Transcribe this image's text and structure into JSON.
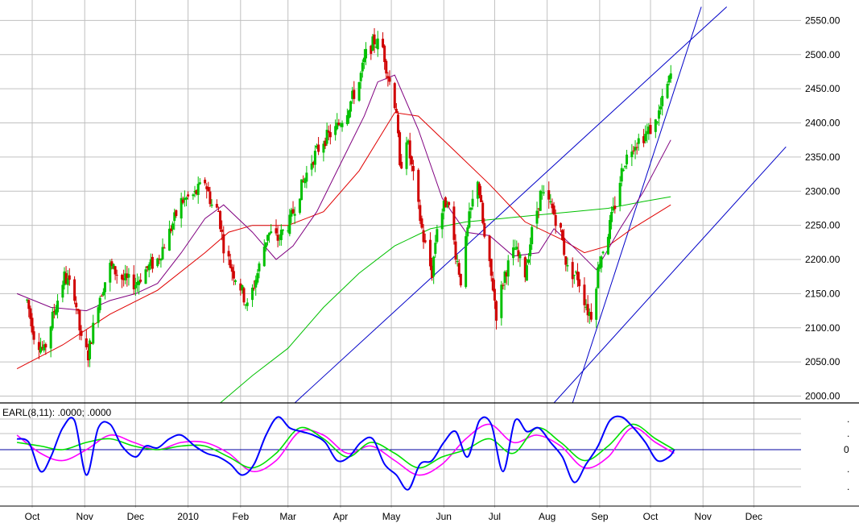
{
  "chart_data": {
    "type": "candlestick",
    "indicator_label": "EARL(8,11): .0000; .0000",
    "indicator_ticks": [
      ".",
      ".",
      "0",
      ".",
      "."
    ],
    "y_axis": {
      "ticks": [
        "2000.00",
        "2050.00",
        "2100.00",
        "2150.00",
        "2200.00",
        "2250.00",
        "2300.00",
        "2350.00",
        "2400.00",
        "2450.00",
        "2500.00",
        "2550.00"
      ],
      "ylim": [
        1990,
        2580
      ]
    },
    "x_axis": {
      "labels": [
        "Oct",
        "Nov",
        "Dec",
        "2010",
        "Feb",
        "Mar",
        "Apr",
        "May",
        "Jun",
        "Jul",
        "Aug",
        "Sep",
        "Oct",
        "Nov",
        "Dec"
      ]
    },
    "price_path": [
      [
        "2009-09-28",
        2140
      ],
      [
        "2009-10-02",
        2090
      ],
      [
        "2009-10-08",
        2065
      ],
      [
        "2009-10-14",
        2125
      ],
      [
        "2009-10-20",
        2175
      ],
      [
        "2009-10-26",
        2150
      ],
      [
        "2009-10-30",
        2080
      ],
      [
        "2009-11-03",
        2060
      ],
      [
        "2009-11-09",
        2140
      ],
      [
        "2009-11-16",
        2190
      ],
      [
        "2009-11-24",
        2170
      ],
      [
        "2009-12-01",
        2165
      ],
      [
        "2009-12-07",
        2185
      ],
      [
        "2009-12-14",
        2200
      ],
      [
        "2009-12-21",
        2240
      ],
      [
        "2009-12-28",
        2285
      ],
      [
        "2010-01-05",
        2295
      ],
      [
        "2010-01-11",
        2315
      ],
      [
        "2010-01-15",
        2280
      ],
      [
        "2010-01-19",
        2270
      ],
      [
        "2010-01-22",
        2220
      ],
      [
        "2010-01-27",
        2185
      ],
      [
        "2010-02-01",
        2160
      ],
      [
        "2010-02-05",
        2130
      ],
      [
        "2010-02-11",
        2180
      ],
      [
        "2010-02-17",
        2240
      ],
      [
        "2010-02-23",
        2230
      ],
      [
        "2010-03-02",
        2255
      ],
      [
        "2010-03-08",
        2300
      ],
      [
        "2010-03-15",
        2345
      ],
      [
        "2010-03-22",
        2375
      ],
      [
        "2010-03-29",
        2390
      ],
      [
        "2010-04-05",
        2420
      ],
      [
        "2010-04-12",
        2460
      ],
      [
        "2010-04-16",
        2500
      ],
      [
        "2010-04-21",
        2520
      ],
      [
        "2010-04-26",
        2510
      ],
      [
        "2010-04-29",
        2470
      ],
      [
        "2010-05-04",
        2420
      ],
      [
        "2010-05-06",
        2330
      ],
      [
        "2010-05-10",
        2380
      ],
      [
        "2010-05-14",
        2320
      ],
      [
        "2010-05-20",
        2230
      ],
      [
        "2010-05-25",
        2180
      ],
      [
        "2010-05-28",
        2250
      ],
      [
        "2010-06-03",
        2290
      ],
      [
        "2010-06-08",
        2210
      ],
      [
        "2010-06-11",
        2170
      ],
      [
        "2010-06-16",
        2260
      ],
      [
        "2010-06-21",
        2320
      ],
      [
        "2010-06-25",
        2230
      ],
      [
        "2010-06-30",
        2160
      ],
      [
        "2010-07-02",
        2120
      ],
      [
        "2010-07-07",
        2180
      ],
      [
        "2010-07-13",
        2215
      ],
      [
        "2010-07-19",
        2180
      ],
      [
        "2010-07-23",
        2240
      ],
      [
        "2010-07-28",
        2295
      ],
      [
        "2010-08-03",
        2280
      ],
      [
        "2010-08-09",
        2240
      ],
      [
        "2010-08-13",
        2185
      ],
      [
        "2010-08-19",
        2175
      ],
      [
        "2010-08-25",
        2125
      ],
      [
        "2010-08-27",
        2120
      ],
      [
        "2010-09-01",
        2200
      ],
      [
        "2010-09-06",
        2240
      ],
      [
        "2010-09-10",
        2280
      ],
      [
        "2010-09-15",
        2340
      ],
      [
        "2010-09-21",
        2370
      ],
      [
        "2010-09-24",
        2375
      ],
      [
        "2010-09-29",
        2385
      ],
      [
        "2010-10-04",
        2400
      ],
      [
        "2010-10-08",
        2430
      ],
      [
        "2010-10-13",
        2470
      ]
    ],
    "ma_purple_path": [
      [
        "2009-09-22",
        2150
      ],
      [
        "2009-10-12",
        2130
      ],
      [
        "2009-11-02",
        2125
      ],
      [
        "2009-11-16",
        2140
      ],
      [
        "2009-12-01",
        2150
      ],
      [
        "2009-12-14",
        2165
      ],
      [
        "2009-12-28",
        2210
      ],
      [
        "2010-01-11",
        2260
      ],
      [
        "2010-01-22",
        2280
      ],
      [
        "2010-02-08",
        2240
      ],
      [
        "2010-02-22",
        2200
      ],
      [
        "2010-03-04",
        2220
      ],
      [
        "2010-03-18",
        2270
      ],
      [
        "2010-04-01",
        2340
      ],
      [
        "2010-04-15",
        2410
      ],
      [
        "2010-04-23",
        2460
      ],
      [
        "2010-05-03",
        2470
      ],
      [
        "2010-05-17",
        2390
      ],
      [
        "2010-05-31",
        2290
      ],
      [
        "2010-06-14",
        2240
      ],
      [
        "2010-06-28",
        2235
      ],
      [
        "2010-07-12",
        2205
      ],
      [
        "2010-07-27",
        2210
      ],
      [
        "2010-08-05",
        2245
      ],
      [
        "2010-08-18",
        2215
      ],
      [
        "2010-08-30",
        2185
      ],
      [
        "2010-09-13",
        2245
      ],
      [
        "2010-09-27",
        2300
      ],
      [
        "2010-10-13",
        2375
      ]
    ],
    "ma_red_path": [
      [
        "2009-09-22",
        2040
      ],
      [
        "2009-10-19",
        2075
      ],
      [
        "2009-11-16",
        2120
      ],
      [
        "2009-12-14",
        2155
      ],
      [
        "2010-01-11",
        2210
      ],
      [
        "2010-01-25",
        2240
      ],
      [
        "2010-02-08",
        2250
      ],
      [
        "2010-03-01",
        2250
      ],
      [
        "2010-03-22",
        2270
      ],
      [
        "2010-04-12",
        2330
      ],
      [
        "2010-05-03",
        2415
      ],
      [
        "2010-05-17",
        2410
      ],
      [
        "2010-06-07",
        2360
      ],
      [
        "2010-06-28",
        2310
      ],
      [
        "2010-07-19",
        2255
      ],
      [
        "2010-08-09",
        2230
      ],
      [
        "2010-08-23",
        2210
      ],
      [
        "2010-09-06",
        2220
      ],
      [
        "2010-09-20",
        2245
      ],
      [
        "2010-10-13",
        2280
      ]
    ],
    "ma_green_path": [
      [
        "2010-01-20",
        1990
      ],
      [
        "2010-02-08",
        2030
      ],
      [
        "2010-03-01",
        2070
      ],
      [
        "2010-03-22",
        2130
      ],
      [
        "2010-04-12",
        2180
      ],
      [
        "2010-05-03",
        2220
      ],
      [
        "2010-05-24",
        2245
      ],
      [
        "2010-06-14",
        2255
      ],
      [
        "2010-07-05",
        2260
      ],
      [
        "2010-07-26",
        2265
      ],
      [
        "2010-08-16",
        2270
      ],
      [
        "2010-09-06",
        2275
      ],
      [
        "2010-09-27",
        2285
      ],
      [
        "2010-10-13",
        2292
      ]
    ],
    "trendlines": [
      {
        "from": [
          "2010-03-05",
          1990
        ],
        "to": [
          "2010-11-15",
          2570
        ]
      },
      {
        "from": [
          "2010-08-05",
          1990
        ],
        "to": [
          "2010-12-20",
          2365
        ]
      },
      {
        "from": [
          "2010-08-16",
          1990
        ],
        "to": [
          "2010-10-31",
          2570
        ]
      }
    ],
    "oscillator_blue_path": [
      [
        "2009-09-22",
        0.3
      ],
      [
        "2009-09-29",
        0.2
      ],
      [
        "2009-10-06",
        -0.6
      ],
      [
        "2009-10-12",
        -0.2
      ],
      [
        "2009-10-19",
        0.6
      ],
      [
        "2009-10-26",
        0.8
      ],
      [
        "2009-11-02",
        -0.7
      ],
      [
        "2009-11-09",
        0.6
      ],
      [
        "2009-11-16",
        0.7
      ],
      [
        "2009-11-23",
        0.1
      ],
      [
        "2009-12-01",
        -0.2
      ],
      [
        "2009-12-07",
        0.1
      ],
      [
        "2009-12-14",
        0.05
      ],
      [
        "2009-12-21",
        0.3
      ],
      [
        "2009-12-28",
        0.4
      ],
      [
        "2010-01-05",
        0.1
      ],
      [
        "2010-01-12",
        -0.1
      ],
      [
        "2010-01-19",
        -0.2
      ],
      [
        "2010-01-26",
        -0.4
      ],
      [
        "2010-02-02",
        -0.7
      ],
      [
        "2010-02-09",
        -0.4
      ],
      [
        "2010-02-16",
        0.4
      ],
      [
        "2010-02-23",
        0.9
      ],
      [
        "2010-03-02",
        0.6
      ],
      [
        "2010-03-09",
        0.5
      ],
      [
        "2010-03-16",
        0.4
      ],
      [
        "2010-03-23",
        0.2
      ],
      [
        "2010-03-30",
        -0.3
      ],
      [
        "2010-04-06",
        -0.2
      ],
      [
        "2010-04-13",
        0.2
      ],
      [
        "2010-04-20",
        0.3
      ],
      [
        "2010-04-27",
        -0.4
      ],
      [
        "2010-05-04",
        -0.7
      ],
      [
        "2010-05-11",
        -1.1
      ],
      [
        "2010-05-18",
        -0.4
      ],
      [
        "2010-05-25",
        -0.3
      ],
      [
        "2010-06-01",
        0.2
      ],
      [
        "2010-06-08",
        0.5
      ],
      [
        "2010-06-15",
        -0.2
      ],
      [
        "2010-06-22",
        0.8
      ],
      [
        "2010-06-29",
        0.7
      ],
      [
        "2010-07-06",
        -0.6
      ],
      [
        "2010-07-13",
        0.8
      ],
      [
        "2010-07-20",
        0.5
      ],
      [
        "2010-07-27",
        0.6
      ],
      [
        "2010-08-03",
        0.2
      ],
      [
        "2010-08-10",
        -0.2
      ],
      [
        "2010-08-17",
        -0.9
      ],
      [
        "2010-08-24",
        -0.4
      ],
      [
        "2010-08-31",
        0.1
      ],
      [
        "2010-09-07",
        0.8
      ],
      [
        "2010-09-14",
        0.9
      ],
      [
        "2010-09-21",
        0.6
      ],
      [
        "2010-09-28",
        0.2
      ],
      [
        "2010-10-05",
        -0.3
      ],
      [
        "2010-10-12",
        -0.2
      ],
      [
        "2010-10-15",
        0.0
      ]
    ],
    "oscillator_magenta_path": [
      [
        "2009-09-22",
        0.4
      ],
      [
        "2009-10-06",
        -0.1
      ],
      [
        "2009-10-19",
        -0.3
      ],
      [
        "2009-11-02",
        0.0
      ],
      [
        "2009-11-16",
        0.4
      ],
      [
        "2009-11-30",
        0.2
      ],
      [
        "2009-12-14",
        0.0
      ],
      [
        "2009-12-28",
        0.2
      ],
      [
        "2010-01-11",
        0.2
      ],
      [
        "2010-01-25",
        -0.1
      ],
      [
        "2010-02-08",
        -0.6
      ],
      [
        "2010-02-22",
        -0.3
      ],
      [
        "2010-03-08",
        0.5
      ],
      [
        "2010-03-22",
        0.4
      ],
      [
        "2010-04-05",
        -0.1
      ],
      [
        "2010-04-19",
        0.1
      ],
      [
        "2010-05-03",
        -0.3
      ],
      [
        "2010-05-17",
        -0.7
      ],
      [
        "2010-05-31",
        -0.4
      ],
      [
        "2010-06-14",
        0.3
      ],
      [
        "2010-06-28",
        0.7
      ],
      [
        "2010-07-12",
        0.2
      ],
      [
        "2010-07-26",
        0.4
      ],
      [
        "2010-08-09",
        0.1
      ],
      [
        "2010-08-23",
        -0.5
      ],
      [
        "2010-09-06",
        -0.2
      ],
      [
        "2010-09-20",
        0.6
      ],
      [
        "2010-10-04",
        0.2
      ],
      [
        "2010-10-15",
        -0.1
      ]
    ],
    "oscillator_green_path": [
      [
        "2009-09-22",
        0.2
      ],
      [
        "2009-10-06",
        0.1
      ],
      [
        "2009-10-19",
        0.0
      ],
      [
        "2009-11-02",
        0.2
      ],
      [
        "2009-11-16",
        0.3
      ],
      [
        "2009-11-30",
        0.1
      ],
      [
        "2009-12-14",
        0.0
      ],
      [
        "2009-12-28",
        0.1
      ],
      [
        "2010-01-11",
        0.1
      ],
      [
        "2010-01-25",
        -0.2
      ],
      [
        "2010-02-08",
        -0.5
      ],
      [
        "2010-02-22",
        -0.1
      ],
      [
        "2010-03-08",
        0.6
      ],
      [
        "2010-03-22",
        0.3
      ],
      [
        "2010-04-05",
        -0.2
      ],
      [
        "2010-04-19",
        0.2
      ],
      [
        "2010-05-03",
        -0.1
      ],
      [
        "2010-05-17",
        -0.5
      ],
      [
        "2010-05-31",
        -0.2
      ],
      [
        "2010-06-14",
        0.0
      ],
      [
        "2010-06-28",
        0.3
      ],
      [
        "2010-07-12",
        -0.1
      ],
      [
        "2010-07-26",
        0.6
      ],
      [
        "2010-08-09",
        0.2
      ],
      [
        "2010-08-23",
        -0.3
      ],
      [
        "2010-09-06",
        0.1
      ],
      [
        "2010-09-20",
        0.7
      ],
      [
        "2010-10-04",
        0.3
      ],
      [
        "2010-10-15",
        0.0
      ]
    ],
    "oscillator_range": [
      -1.3,
      1.3
    ],
    "colors": {
      "up": "#00c000",
      "down": "#d00000",
      "grid": "#c0c0c0",
      "ma_purple": "#800080",
      "ma_red": "#e00000",
      "ma_green": "#00c000",
      "trend": "#0000c8",
      "osc_blue": "#0000ff",
      "osc_magenta": "#ff00ff",
      "osc_green": "#00e000",
      "zero": "#0000a0"
    }
  }
}
